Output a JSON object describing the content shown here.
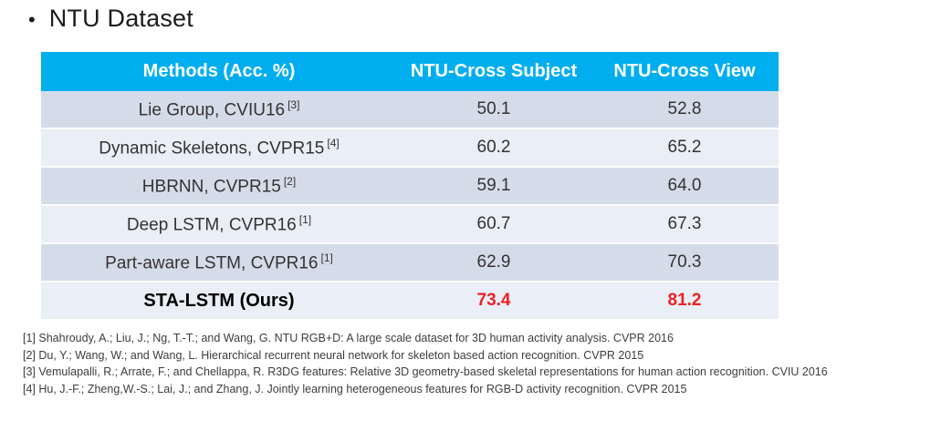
{
  "slide": {
    "bullet": "•",
    "title": "NTU Dataset"
  },
  "table": {
    "headers": [
      "Methods (Acc. %)",
      "NTU-Cross Subject",
      "NTU-Cross View"
    ],
    "rows": [
      {
        "method": "Lie Group, CVIU16",
        "ref": "[3]",
        "cross_subject": "50.1",
        "cross_view": "52.8",
        "highlight": false
      },
      {
        "method": "Dynamic Skeletons, CVPR15",
        "ref": "[4]",
        "cross_subject": "60.2",
        "cross_view": "65.2",
        "highlight": false
      },
      {
        "method": "HBRNN, CVPR15",
        "ref": "[2]",
        "cross_subject": "59.1",
        "cross_view": "64.0",
        "highlight": false
      },
      {
        "method": "Deep LSTM, CVPR16",
        "ref": "[1]",
        "cross_subject": "60.7",
        "cross_view": "67.3",
        "highlight": false
      },
      {
        "method": "Part-aware LSTM, CVPR16",
        "ref": "[1]",
        "cross_subject": "62.9",
        "cross_view": "70.3",
        "highlight": false
      },
      {
        "method": "STA-LSTM (Ours)",
        "ref": "",
        "cross_subject": "73.4",
        "cross_view": "81.2",
        "highlight": true
      }
    ]
  },
  "footnotes": [
    "[1] Shahroudy, A.; Liu, J.; Ng, T.-T.; and Wang, G. NTU RGB+D: A large scale dataset for 3D human activity analysis. CVPR 2016",
    "[2] Du, Y.; Wang, W.; and Wang, L. Hierarchical recurrent neural network for skeleton based action recognition. CVPR 2015",
    "[3] Vemulapalli, R.; Arrate, F.; and Chellappa, R. R3DG features: Relative 3D geometry-based skeletal representations for human action recognition. CVIU 2016",
    "[4] Hu, J.-F.; Zheng,W.-S.; Lai, J.; and Zhang, J. Jointly learning heterogeneous features for RGB-D activity recognition. CVPR 2015"
  ],
  "colors": {
    "header_bg": "#00AEEF",
    "header_text": "#FFFFFF",
    "row_dark": "#D5DCE9",
    "row_light": "#EAEEF6",
    "highlight_value": "#ED2024",
    "body_text": "#333333"
  },
  "chart_data": {
    "type": "table",
    "title": "NTU Dataset",
    "columns": [
      "Methods (Acc. %)",
      "NTU-Cross Subject",
      "NTU-Cross View"
    ],
    "rows": [
      [
        "Lie Group, CVIU16 [3]",
        50.1,
        52.8
      ],
      [
        "Dynamic Skeletons, CVPR15 [4]",
        60.2,
        65.2
      ],
      [
        "HBRNN, CVPR15 [2]",
        59.1,
        64.0
      ],
      [
        "Deep LSTM, CVPR16 [1]",
        60.7,
        67.3
      ],
      [
        "Part-aware LSTM, CVPR16 [1]",
        62.9,
        70.3
      ],
      [
        "STA-LSTM (Ours)",
        73.4,
        81.2
      ]
    ]
  }
}
